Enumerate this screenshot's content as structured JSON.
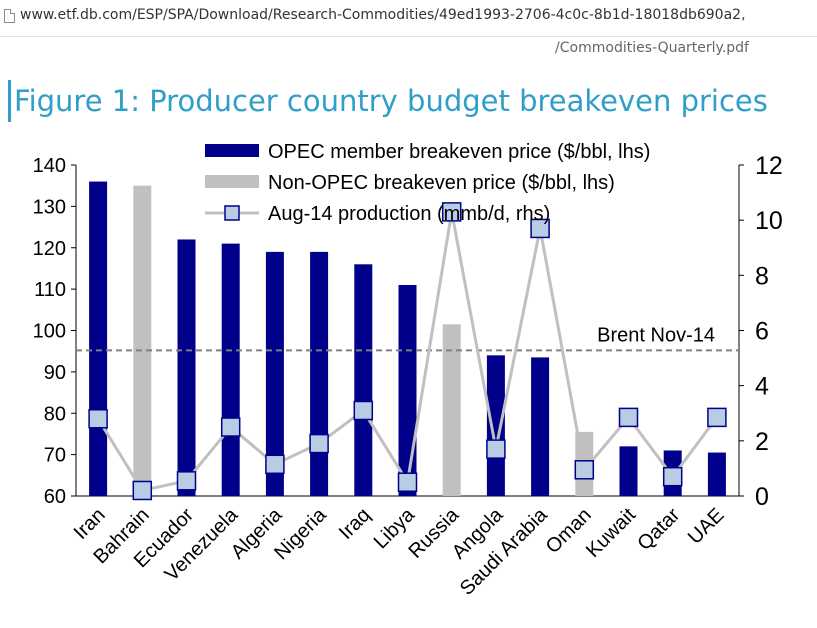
{
  "browser": {
    "url_line1": "www.etf.db.com/ESP/SPA/Download/Research-Commodities/49ed1993-2706-4c0c-8b1d-18018db690a2,",
    "url_line2": "/Commodities-Quarterly.pdf"
  },
  "figure_title": "Figure 1: Producer country budget breakeven prices",
  "colors": {
    "opec": "#00008b",
    "non_opec": "#c0c0c0",
    "production_line": "#c0c0c0",
    "marker_fill": "#b8cce4",
    "marker_edge": "#00008b",
    "title": "#2f9fc9",
    "brent_line": "#808080"
  },
  "chart_data": {
    "type": "bar",
    "title": "",
    "xlabel": "",
    "ylabel": "",
    "ylabel_right": "",
    "categories": [
      "Iran",
      "Bahrain",
      "Ecuador",
      "Venezuela",
      "Algeria",
      "Nigeria",
      "Iraq",
      "Libya",
      "Russia",
      "Angola",
      "Saudi Arabia",
      "Oman",
      "Kuwait",
      "Qatar",
      "UAE"
    ],
    "series": [
      {
        "name": "OPEC member breakeven price ($/bbl, lhs)",
        "type": "bar",
        "axis": "left",
        "values": [
          136,
          null,
          122,
          121,
          119,
          119,
          116,
          111,
          null,
          94,
          93.5,
          null,
          72,
          71,
          70.5
        ]
      },
      {
        "name": "Non-OPEC breakeven price ($/bbl, lhs)",
        "type": "bar",
        "axis": "left",
        "values": [
          null,
          135,
          null,
          null,
          null,
          null,
          null,
          null,
          101.5,
          null,
          null,
          75.5,
          null,
          null,
          null
        ]
      },
      {
        "name": "Aug-14 production (mmb/d, rhs)",
        "type": "line",
        "axis": "right",
        "values": [
          2.8,
          0.2,
          0.55,
          2.5,
          1.15,
          1.9,
          3.1,
          0.5,
          10.3,
          1.7,
          9.7,
          0.95,
          2.85,
          0.7,
          2.85
        ]
      }
    ],
    "reference_line": {
      "label": "Brent Nov-14",
      "value": 95.2,
      "axis": "left"
    },
    "ylim_left": [
      60,
      140
    ],
    "yticks_left": [
      60,
      70,
      80,
      90,
      100,
      110,
      120,
      130,
      140
    ],
    "ylim_right": [
      0,
      12
    ],
    "yticks_right": [
      0,
      2,
      4,
      6,
      8,
      10,
      12
    ],
    "legend_position": "top-center",
    "grid": false
  }
}
